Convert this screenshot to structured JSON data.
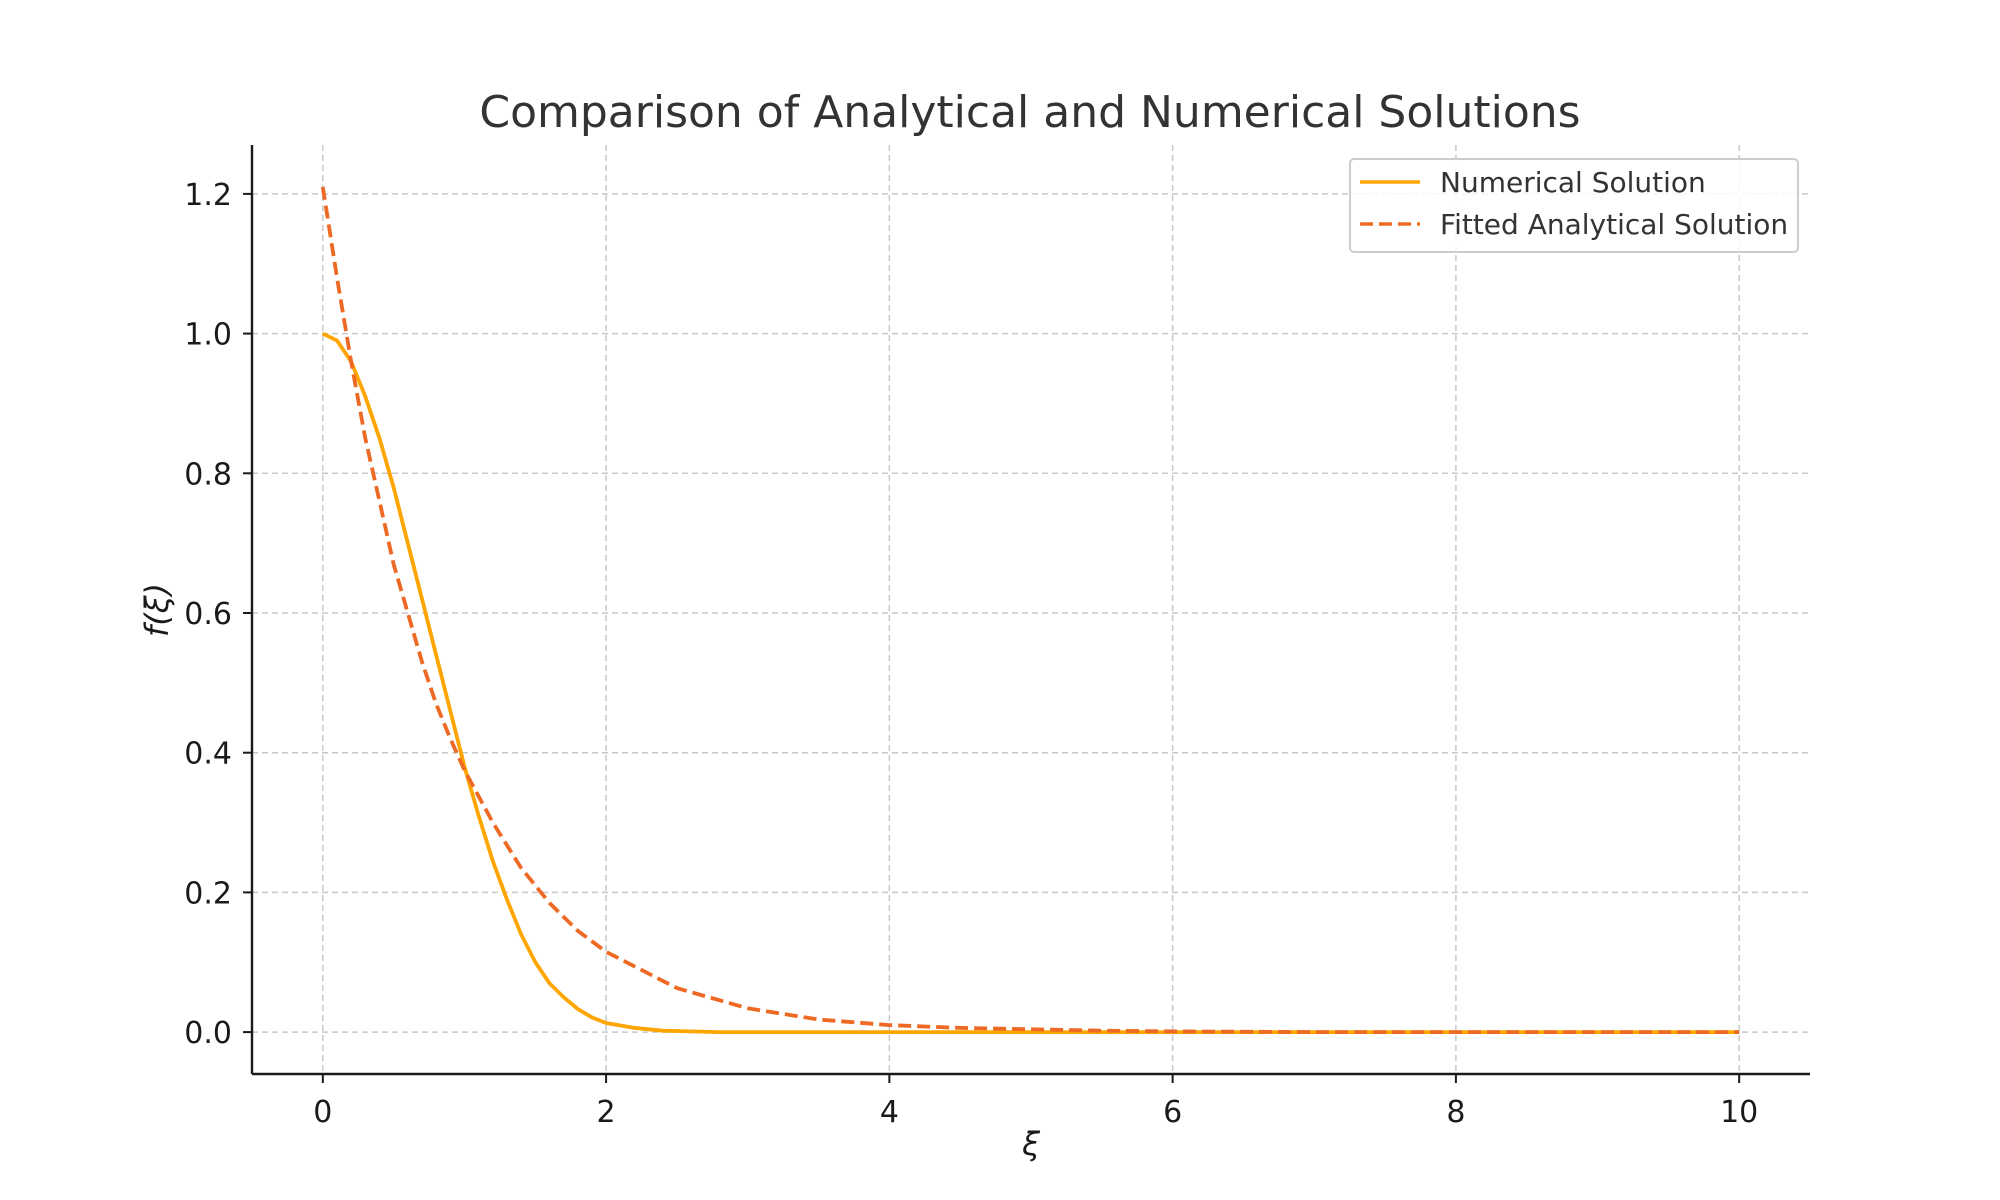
{
  "chart_data": {
    "type": "line",
    "title": "Comparison of Analytical and Numerical Solutions",
    "xlabel": "ξ",
    "ylabel": "f(ξ)",
    "xlim": [
      -0.5,
      10.5
    ],
    "ylim": [
      -0.06,
      1.27
    ],
    "xticks": [
      0,
      2,
      4,
      6,
      8,
      10
    ],
    "xtick_labels": [
      "0",
      "2",
      "4",
      "6",
      "8",
      "10"
    ],
    "yticks": [
      0.0,
      0.2,
      0.4,
      0.6,
      0.8,
      1.0,
      1.2
    ],
    "ytick_labels": [
      "0.0",
      "0.2",
      "0.4",
      "0.6",
      "0.8",
      "1.0",
      "1.2"
    ],
    "grid": true,
    "legend_position": "top-right",
    "colors": {
      "numerical": "#FFA500",
      "analytical": "#EE6A24",
      "grid": "#c8c8c8",
      "axis": "#1a1a1a"
    },
    "series": [
      {
        "name": "Numerical Solution",
        "style": "solid",
        "x": [
          0,
          0.1,
          0.2,
          0.3,
          0.4,
          0.5,
          0.6,
          0.7,
          0.8,
          0.9,
          1.0,
          1.1,
          1.2,
          1.3,
          1.4,
          1.5,
          1.6,
          1.7,
          1.8,
          1.9,
          2.0,
          2.2,
          2.4,
          2.6,
          2.8,
          3.0,
          3.5,
          4.0,
          5.0,
          6.0,
          7.0,
          8.0,
          9.0,
          10.0
        ],
        "y": [
          1.0,
          0.99,
          0.96,
          0.91,
          0.85,
          0.78,
          0.7,
          0.62,
          0.54,
          0.46,
          0.38,
          0.31,
          0.245,
          0.19,
          0.14,
          0.1,
          0.07,
          0.05,
          0.033,
          0.021,
          0.013,
          0.006,
          0.002,
          0.001,
          0.0,
          0.0,
          0.0,
          0.0,
          0.0,
          0.0,
          0.0,
          0.0,
          0.0,
          0.0
        ]
      },
      {
        "name": "Fitted Analytical Solution",
        "style": "dashed",
        "x": [
          0,
          0.1,
          0.2,
          0.3,
          0.4,
          0.5,
          0.6,
          0.7,
          0.8,
          0.9,
          1.0,
          1.2,
          1.4,
          1.6,
          1.8,
          2.0,
          2.5,
          3.0,
          3.5,
          4.0,
          4.5,
          5.0,
          5.5,
          6.0,
          7.0,
          8.0,
          9.0,
          10.0
        ],
        "y": [
          1.21,
          1.08,
          0.96,
          0.85,
          0.76,
          0.67,
          0.6,
          0.53,
          0.47,
          0.42,
          0.375,
          0.3,
          0.235,
          0.185,
          0.145,
          0.115,
          0.063,
          0.034,
          0.018,
          0.01,
          0.006,
          0.004,
          0.002,
          0.001,
          0.0,
          0.0,
          0.0,
          0.0
        ]
      }
    ]
  }
}
